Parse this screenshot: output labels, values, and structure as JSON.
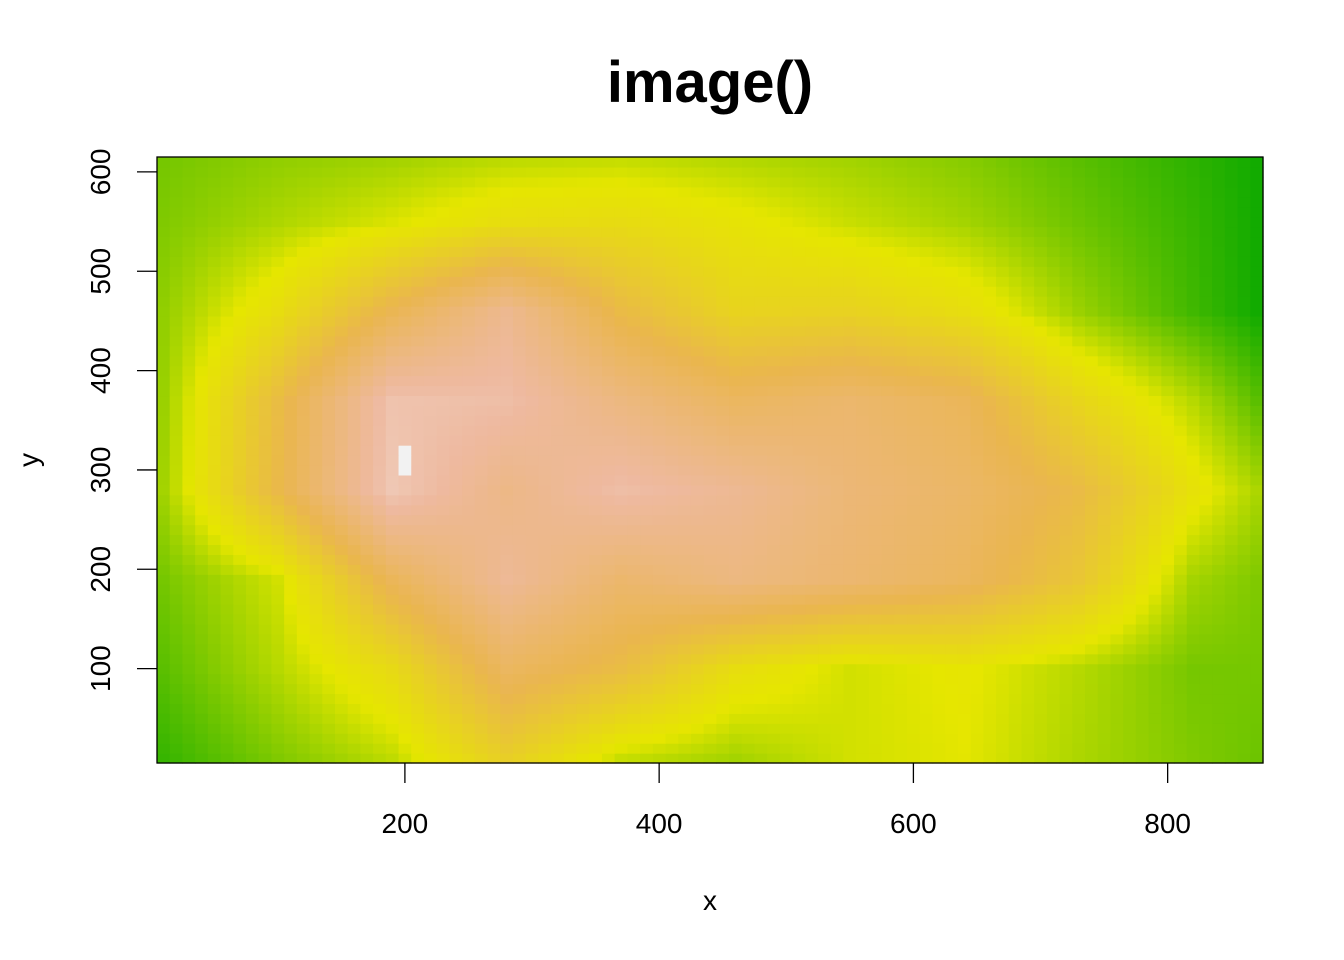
{
  "chart_data": {
    "type": "heatmap",
    "title": "image()",
    "xlabel": "x",
    "ylabel": "y",
    "xlim": [
      5,
      875
    ],
    "ylim": [
      5,
      615
    ],
    "x_ticks": [
      {
        "value": 200,
        "label": "200"
      },
      {
        "value": 400,
        "label": "400"
      },
      {
        "value": 600,
        "label": "600"
      },
      {
        "value": 800,
        "label": "800"
      }
    ],
    "y_ticks": [
      {
        "value": 100,
        "label": "100"
      },
      {
        "value": 200,
        "label": "200"
      },
      {
        "value": 300,
        "label": "300"
      },
      {
        "value": 400,
        "label": "400"
      },
      {
        "value": 500,
        "label": "500"
      },
      {
        "value": 600,
        "label": "600"
      }
    ],
    "grid": false,
    "legend": "none",
    "colorscale": "terrain",
    "color_stops": [
      "#00a600",
      "#e6e600",
      "#eab64e",
      "#eeb99f",
      "#f2f2f2"
    ],
    "z_range": [
      94,
      195
    ],
    "x_step": 10,
    "y_step": 10,
    "grid_x": [
      10,
      100,
      190,
      280,
      370,
      460,
      550,
      640,
      730,
      820,
      870
    ],
    "grid_y": [
      10,
      100,
      190,
      280,
      370,
      460,
      550,
      610
    ],
    "z_grid": [
      [
        100,
        108,
        115,
        132,
        116,
        112,
        117,
        119,
        113,
        108,
        106
      ],
      [
        104,
        114,
        126,
        150,
        141,
        124,
        117,
        120,
        114,
        107,
        107
      ],
      [
        107,
        117,
        148,
        167,
        154,
        160,
        155,
        149,
        136,
        112,
        108
      ],
      [
        112,
        143,
        176,
        162,
        172,
        166,
        157,
        152,
        142,
        122,
        113
      ],
      [
        111,
        141,
        174,
        172,
        160,
        150,
        154,
        148,
        128,
        114,
        104
      ],
      [
        110,
        124,
        146,
        165,
        142,
        129,
        130,
        124,
        111,
        101,
        96
      ],
      [
        108,
        113,
        118,
        124,
        125,
        121,
        116,
        112,
        106,
        100,
        96
      ],
      [
        107,
        110,
        112,
        115,
        116,
        114,
        112,
        109,
        104,
        99,
        96
      ]
    ],
    "highlight_cell": {
      "x": 200,
      "y": 310,
      "z": 195
    }
  }
}
